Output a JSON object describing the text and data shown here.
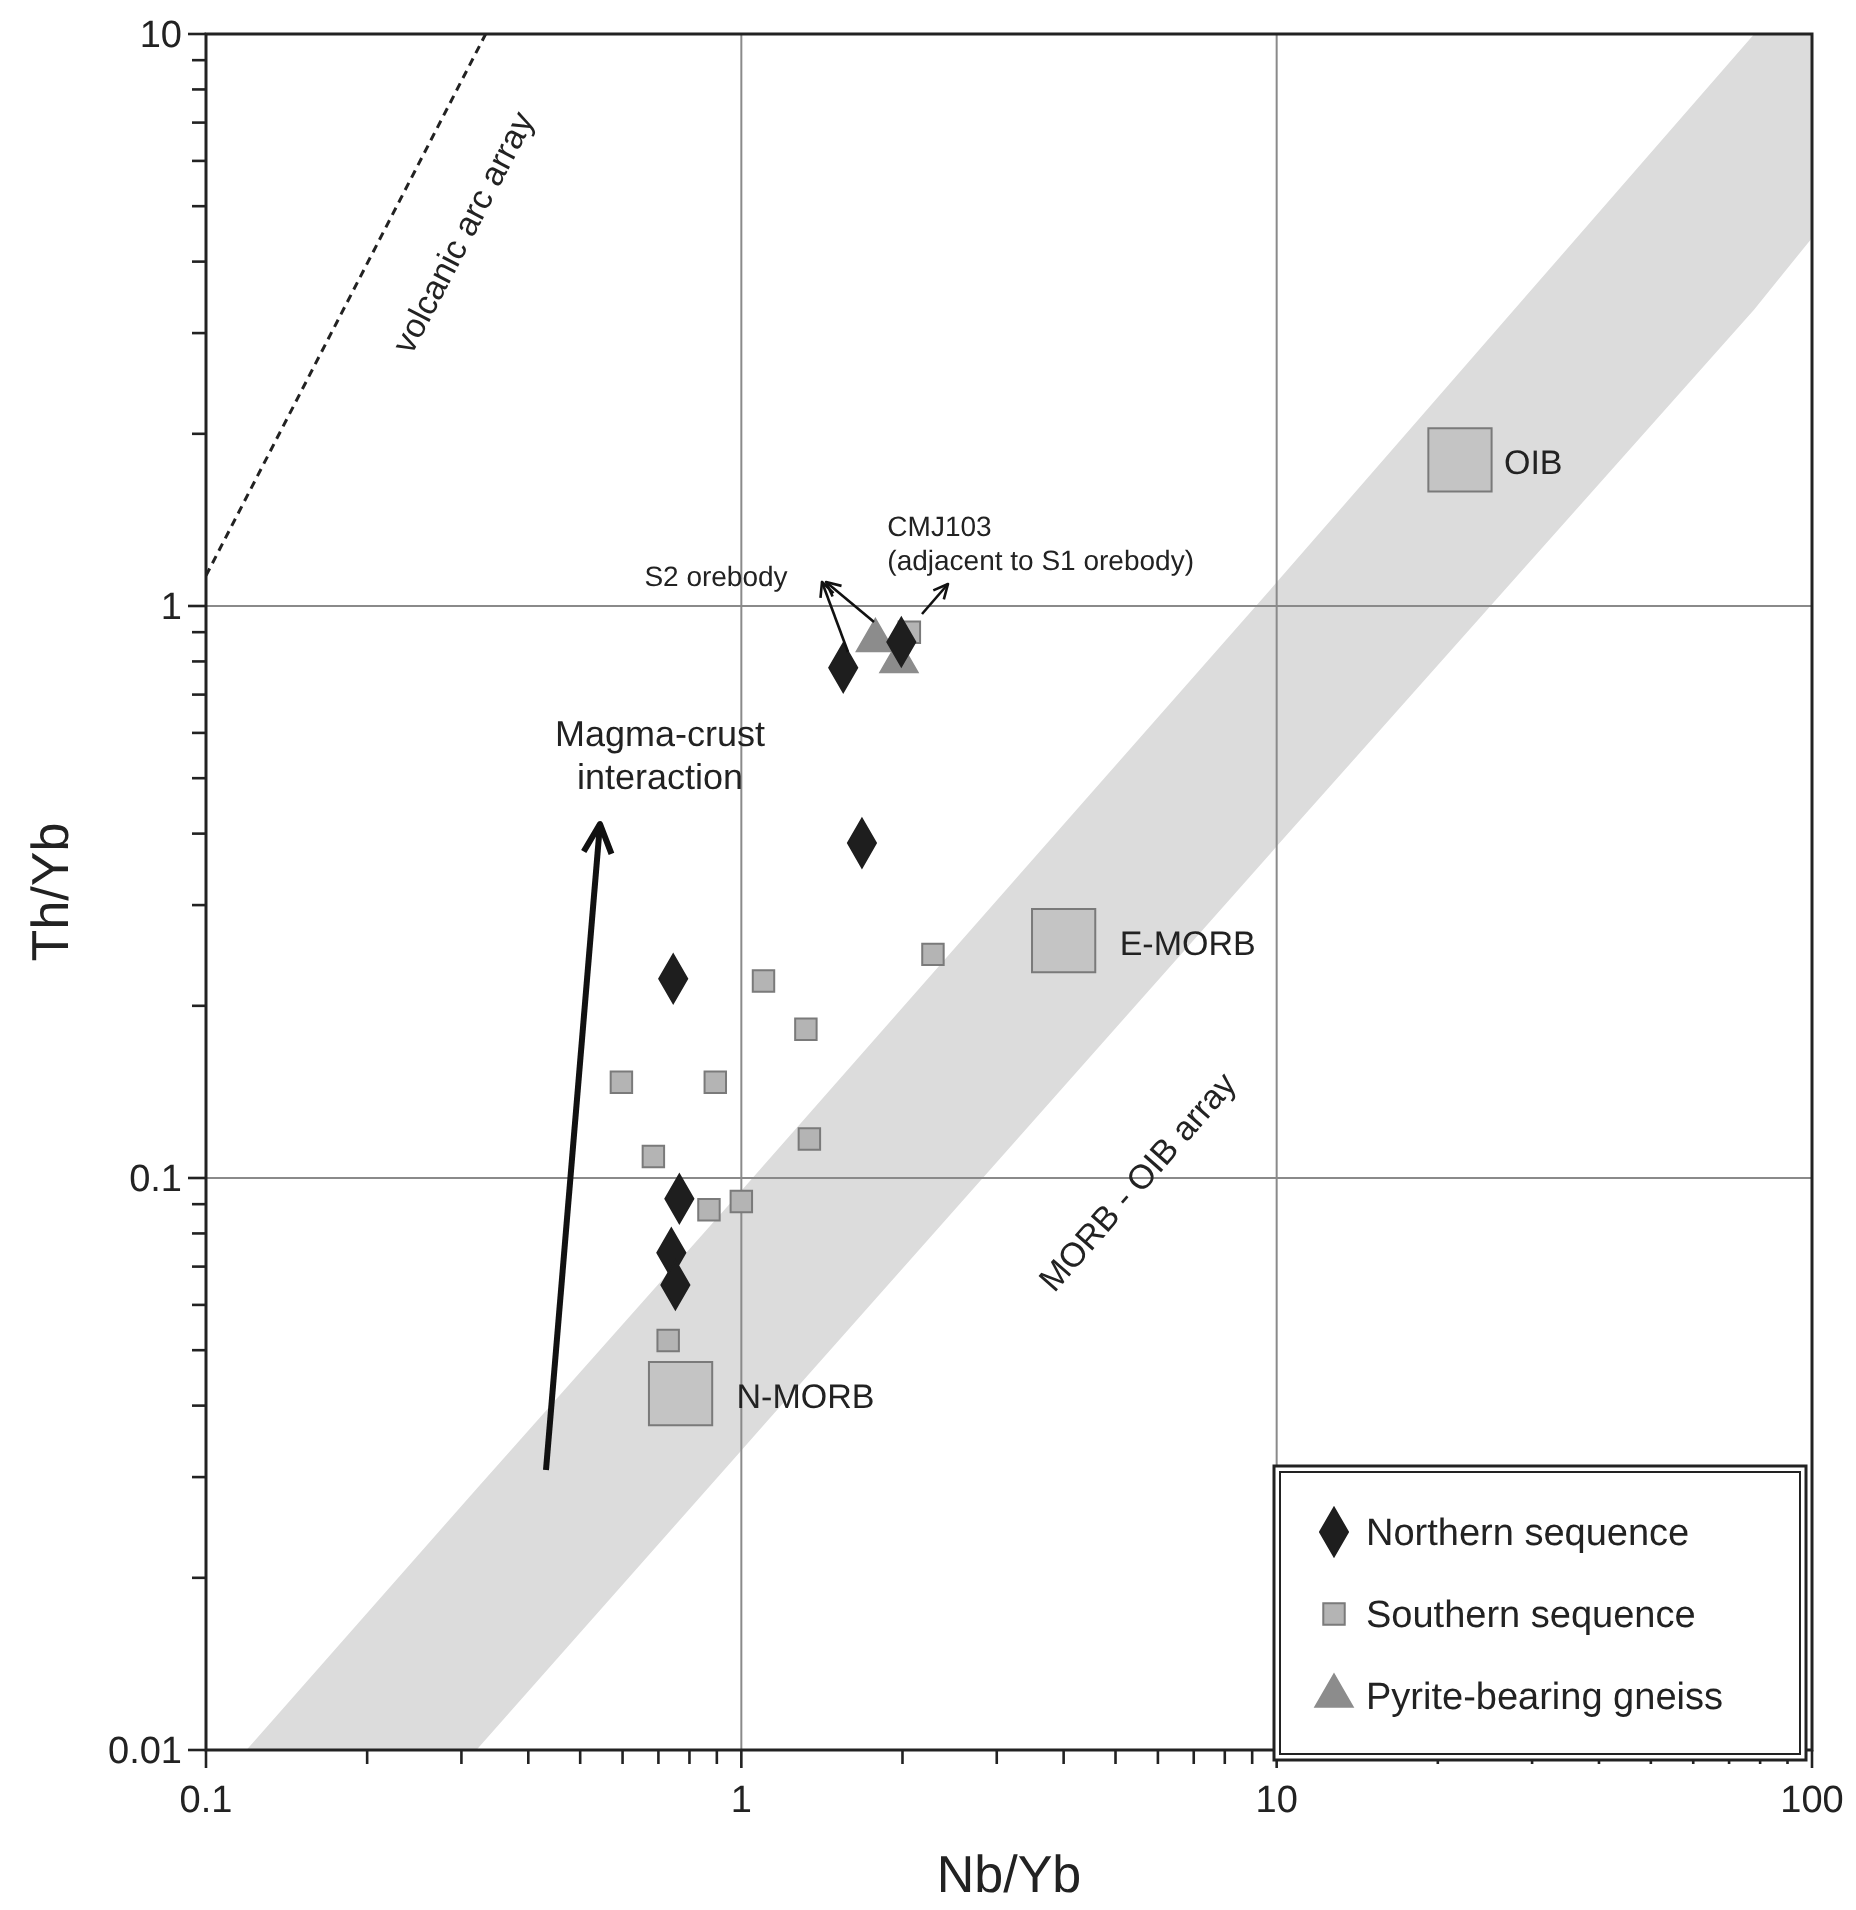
{
  "chart_data": {
    "type": "scatter",
    "xlabel": "Nb/Yb",
    "ylabel": "Th/Yb",
    "log": "xy",
    "grid": true,
    "legend": "bottom right",
    "xlim": [
      0.1,
      100
    ],
    "ylim": [
      0.01,
      10
    ],
    "xticks": [
      0.1,
      {
        "value": 0.2,
        "label": null
      },
      {
        "value": 0.3,
        "label": null
      },
      {
        "value": 0.4,
        "label": null
      },
      {
        "value": 0.5,
        "label": null
      },
      {
        "value": 0.6,
        "label": null
      },
      {
        "value": 0.7,
        "label": null
      },
      {
        "value": 0.8,
        "label": null
      },
      {
        "value": 0.9,
        "label": null
      },
      1,
      {
        "value": 2,
        "label": null
      },
      {
        "value": 3,
        "label": null
      },
      {
        "value": 4,
        "label": null
      },
      {
        "value": 5,
        "label": null
      },
      {
        "value": 6,
        "label": null
      },
      {
        "value": 7,
        "label": null
      },
      {
        "value": 8,
        "label": null
      },
      {
        "value": 9,
        "label": null
      },
      10,
      {
        "value": 20,
        "label": null
      },
      {
        "value": 30,
        "label": null
      },
      {
        "value": 40,
        "label": null
      },
      {
        "value": 50,
        "label": null
      },
      {
        "value": 60,
        "label": null
      },
      {
        "value": 70,
        "label": null
      },
      {
        "value": 80,
        "label": null
      },
      {
        "value": 90,
        "label": null
      },
      100
    ],
    "yticks": [
      0.01,
      {
        "value": 0.02,
        "label": null
      },
      {
        "value": 0.03,
        "label": null
      },
      {
        "value": 0.04,
        "label": null
      },
      {
        "value": 0.05,
        "label": null
      },
      {
        "value": 0.06,
        "label": null
      },
      {
        "value": 0.07,
        "label": null
      },
      {
        "value": 0.08,
        "label": null
      },
      {
        "value": 0.09,
        "label": null
      },
      0.1,
      {
        "value": 0.2,
        "label": null
      },
      {
        "value": 0.3,
        "label": null
      },
      {
        "value": 0.4,
        "label": null
      },
      {
        "value": 0.5,
        "label": null
      },
      {
        "value": 0.6,
        "label": null
      },
      {
        "value": 0.7,
        "label": null
      },
      {
        "value": 0.8,
        "label": null
      },
      {
        "value": 0.9,
        "label": null
      },
      1,
      {
        "value": 2,
        "label": null
      },
      {
        "value": 3,
        "label": null
      },
      {
        "value": 4,
        "label": null
      },
      {
        "value": 5,
        "label": null
      },
      {
        "value": 6,
        "label": null
      },
      {
        "value": 7,
        "label": null
      },
      {
        "value": 8,
        "label": null
      },
      {
        "value": 9,
        "label": null
      },
      10
    ],
    "series": [
      {
        "type": "line",
        "color": "#dcdcdc",
        "x": [
          0.119,
          0.32,
          1,
          10,
          78,
          100
        ],
        "lower": [
          0.01,
          0.01,
          0.0334,
          0.38,
          3.3,
          4.4
        ],
        "upper": [
          0.01,
          0.0286,
          0.095,
          1.1,
          10,
          10
        ],
        "values": [
          null,
          null,
          null,
          null,
          null,
          null
        ]
      },
      {
        "type": "line",
        "color": "#222222",
        "line_style": "dashed",
        "x": [
          0.1,
          0.333
        ],
        "values": [
          1.13,
          10
        ]
      },
      {
        "marker": "square",
        "color": "#c4c4c4",
        "x": [
          0.77,
          4.0,
          22
        ],
        "values": [
          0.042,
          0.26,
          1.8
        ]
      },
      {
        "name": "Northern sequence",
        "marker": "diamond",
        "color": "#1e1e1e",
        "x": [
          1.55,
          1.99,
          1.68,
          0.746,
          0.766,
          0.74,
          0.753
        ],
        "values": [
          0.78,
          0.865,
          0.385,
          0.223,
          0.092,
          0.074,
          0.065
        ]
      },
      {
        "name": "Southern sequence",
        "marker": "square",
        "color": "#b4b4b4",
        "x": [
          2.06,
          1.1,
          1.32,
          2.28,
          0.597,
          0.894,
          0.685,
          1.34,
          0.87,
          1.0,
          0.73
        ],
        "values": [
          0.9,
          0.221,
          0.182,
          0.246,
          0.147,
          0.147,
          0.109,
          0.117,
          0.088,
          0.091,
          0.052
        ]
      },
      {
        "name": "Pyrite-bearing gneiss",
        "marker": "triangle",
        "color": "#8c8c8c",
        "x": [
          1.78,
          1.97
        ],
        "values": [
          0.87,
          0.8
        ]
      }
    ],
    "annotations": [
      "volcanic arc array",
      "MORB - OIB array",
      {
        "text": "N-MORB",
        "x": 0.77,
        "y": 0.042
      },
      {
        "text": "E-MORB",
        "x": 4.0,
        "y": 0.26
      },
      {
        "text": "OIB",
        "x": 22,
        "y": 1.8
      },
      "S2 orebody",
      {
        "text": "CMJ103 (adjacent to S1 orebody)",
        "x": 2.06,
        "y": 0.9
      },
      "Magma-crust interaction"
    ]
  }
}
